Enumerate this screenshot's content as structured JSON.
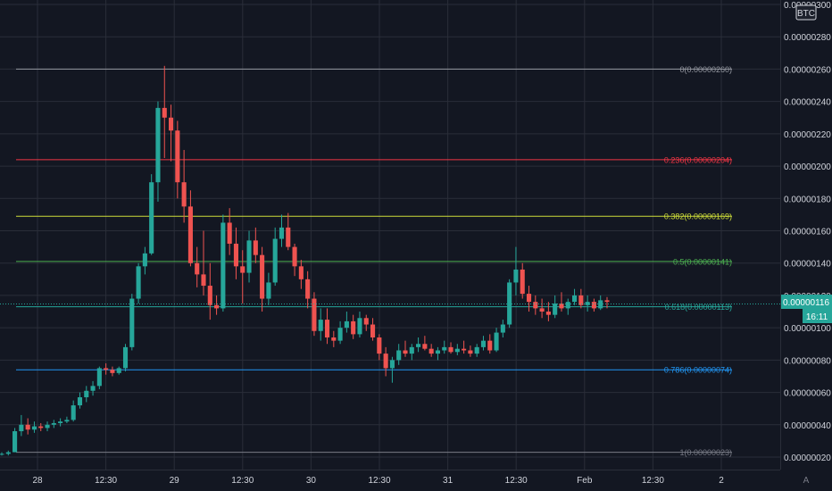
{
  "chart_data": {
    "type": "candlestick",
    "title": "",
    "currency_badge": "BTC",
    "auto_scale_label": "A",
    "ylim": [
      1.7e-07,
      3e-06
    ],
    "y_ticks": [
      "0.00000300",
      "0.00000280",
      "0.00000260",
      "0.00000240",
      "0.00000220",
      "0.00000200",
      "0.00000180",
      "0.00000160",
      "0.00000140",
      "0.00000120",
      "0.00000100",
      "0.00000080",
      "0.00000060",
      "0.00000040",
      "0.00000020"
    ],
    "x_ticks": [
      "28",
      "12:30",
      "29",
      "12:30",
      "30",
      "12:30",
      "31",
      "12:30",
      "Feb",
      "12:30",
      "2"
    ],
    "last_price": "0.00000116",
    "countdown": "16:11",
    "grid": true,
    "colors": {
      "background": "#131722",
      "up": "#26a69a",
      "down": "#ef5350",
      "grid": "#2a2e39",
      "axis_text": "#d1d4dc"
    },
    "fib_levels": [
      {
        "label": "0(0.00000260)",
        "value": 2.6e-06,
        "color": "#9598a1"
      },
      {
        "label": "0.236(0.00000204)",
        "value": 2.04e-06,
        "color": "#f23645"
      },
      {
        "label": "0.382(0.00000169)",
        "value": 1.69e-06,
        "color": "#cddc39"
      },
      {
        "label": "0.5(0.00000141)",
        "value": 1.41e-06,
        "color": "#4caf50"
      },
      {
        "label": "0.618(0.00000113)",
        "value": 1.13e-06,
        "color": "#26a69a"
      },
      {
        "label": "0.786(0.00000074)",
        "value": 7.4e-07,
        "color": "#2196f3"
      },
      {
        "label": "1(0.00000023)",
        "value": 2.3e-07,
        "color": "#787b86"
      }
    ],
    "candles_ohlc_e8": [
      [
        22,
        23,
        21,
        22
      ],
      [
        22,
        24,
        21,
        23
      ],
      [
        23,
        38,
        23,
        36
      ],
      [
        36,
        46,
        33,
        40
      ],
      [
        40,
        44,
        34,
        37
      ],
      [
        37,
        42,
        35,
        39
      ],
      [
        39,
        41,
        36,
        38
      ],
      [
        38,
        42,
        36,
        40
      ],
      [
        40,
        43,
        38,
        41
      ],
      [
        41,
        44,
        39,
        42
      ],
      [
        42,
        45,
        41,
        43
      ],
      [
        43,
        55,
        42,
        52
      ],
      [
        52,
        60,
        50,
        57
      ],
      [
        57,
        64,
        54,
        61
      ],
      [
        61,
        67,
        58,
        64
      ],
      [
        64,
        76,
        62,
        75
      ],
      [
        75,
        78,
        71,
        74
      ],
      [
        74,
        76,
        70,
        72
      ],
      [
        72,
        76,
        71,
        75
      ],
      [
        75,
        90,
        73,
        88
      ],
      [
        88,
        121,
        86,
        118
      ],
      [
        118,
        140,
        115,
        138
      ],
      [
        138,
        150,
        133,
        146
      ],
      [
        146,
        195,
        145,
        190
      ],
      [
        190,
        240,
        178,
        236
      ],
      [
        236,
        262,
        205,
        230
      ],
      [
        230,
        238,
        203,
        222
      ],
      [
        222,
        228,
        180,
        190
      ],
      [
        190,
        210,
        165,
        175
      ],
      [
        175,
        185,
        138,
        140
      ],
      [
        140,
        150,
        125,
        133
      ],
      [
        133,
        160,
        120,
        126
      ],
      [
        126,
        140,
        105,
        114
      ],
      [
        114,
        120,
        108,
        112
      ],
      [
        112,
        170,
        110,
        165
      ],
      [
        165,
        174,
        145,
        152
      ],
      [
        152,
        162,
        130,
        138
      ],
      [
        138,
        148,
        115,
        134
      ],
      [
        134,
        160,
        128,
        154
      ],
      [
        154,
        162,
        140,
        145
      ],
      [
        145,
        150,
        110,
        118
      ],
      [
        118,
        134,
        114,
        128
      ],
      [
        128,
        162,
        126,
        155
      ],
      [
        155,
        170,
        150,
        162
      ],
      [
        162,
        171,
        148,
        150
      ],
      [
        150,
        152,
        132,
        138
      ],
      [
        138,
        142,
        124,
        130
      ],
      [
        130,
        135,
        112,
        118
      ],
      [
        118,
        122,
        95,
        98
      ],
      [
        98,
        112,
        92,
        105
      ],
      [
        105,
        112,
        90,
        94
      ],
      [
        94,
        98,
        88,
        92
      ],
      [
        92,
        104,
        90,
        100
      ],
      [
        100,
        110,
        97,
        104
      ],
      [
        104,
        108,
        93,
        96
      ],
      [
        96,
        110,
        94,
        106
      ],
      [
        106,
        108,
        98,
        102
      ],
      [
        102,
        106,
        92,
        94
      ],
      [
        94,
        96,
        80,
        84
      ],
      [
        84,
        88,
        70,
        75
      ],
      [
        75,
        82,
        66,
        80
      ],
      [
        80,
        90,
        77,
        86
      ],
      [
        86,
        92,
        82,
        84
      ],
      [
        84,
        90,
        80,
        88
      ],
      [
        88,
        94,
        85,
        90
      ],
      [
        90,
        95,
        86,
        87
      ],
      [
        87,
        90,
        82,
        84
      ],
      [
        84,
        88,
        80,
        86
      ],
      [
        86,
        92,
        84,
        88
      ],
      [
        88,
        91,
        84,
        85
      ],
      [
        85,
        90,
        83,
        87
      ],
      [
        87,
        92,
        84,
        86
      ],
      [
        86,
        89,
        82,
        84
      ],
      [
        84,
        90,
        82,
        88
      ],
      [
        88,
        95,
        86,
        92
      ],
      [
        92,
        96,
        84,
        86
      ],
      [
        86,
        100,
        85,
        97
      ],
      [
        97,
        105,
        94,
        102
      ],
      [
        102,
        130,
        100,
        128
      ],
      [
        128,
        150,
        120,
        136
      ],
      [
        136,
        140,
        118,
        121
      ],
      [
        121,
        126,
        110,
        116
      ],
      [
        116,
        120,
        108,
        112
      ],
      [
        112,
        118,
        106,
        110
      ],
      [
        110,
        116,
        104,
        108
      ],
      [
        108,
        120,
        106,
        115
      ],
      [
        115,
        122,
        110,
        112
      ],
      [
        112,
        118,
        108,
        116
      ],
      [
        116,
        124,
        114,
        120
      ],
      [
        120,
        124,
        112,
        114
      ],
      [
        114,
        120,
        110,
        116
      ],
      [
        116,
        118,
        110,
        112
      ],
      [
        112,
        120,
        111,
        117
      ],
      [
        117,
        119,
        112,
        116
      ]
    ]
  }
}
